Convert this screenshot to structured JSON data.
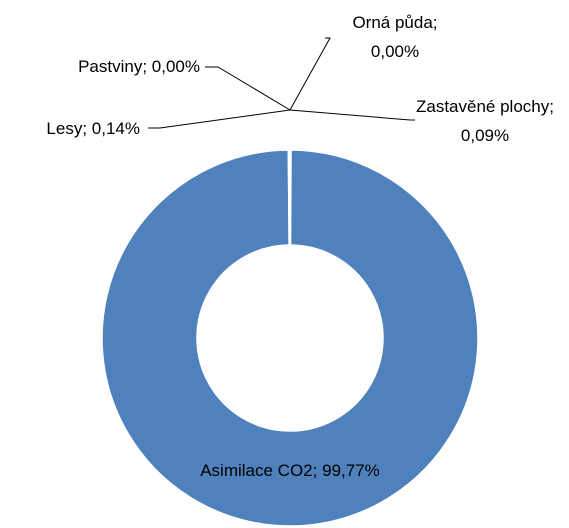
{
  "chart_data": {
    "type": "donut",
    "categories": [
      "Orná půda",
      "Zastavěné plochy",
      "Asimilace CO2",
      "Lesy",
      "Pastviny"
    ],
    "values": [
      0,
      0.09,
      99.77,
      0.14,
      0
    ],
    "value_labels": [
      "0,00%",
      "0,09%",
      "99,77%",
      "0,14%",
      "0,00%"
    ],
    "label_separator": ";",
    "colors": [
      "#c0504d",
      "#9bbb59",
      "#4f81bd",
      "#8064a2",
      "#4bacc6"
    ]
  }
}
